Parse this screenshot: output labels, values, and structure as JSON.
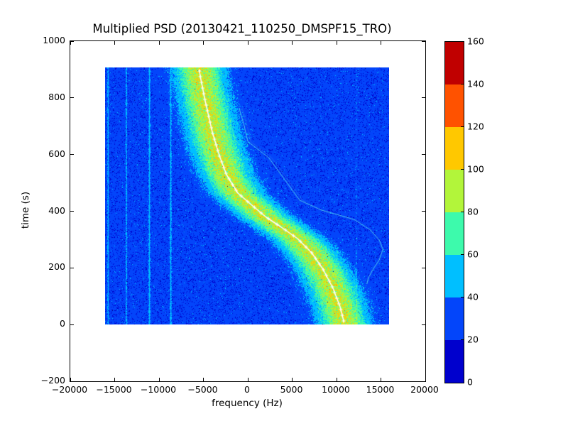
{
  "title": "Multiplied PSD (20130421_110250_DMSPF15_TRO)",
  "axes": {
    "xlabel": "frequency (Hz)",
    "ylabel": "time (s)",
    "xlim": [
      -20000,
      20000
    ],
    "ylim": [
      -200,
      1000
    ],
    "xticks": [
      {
        "value": -20000,
        "label": "−20000"
      },
      {
        "value": -15000,
        "label": "−15000"
      },
      {
        "value": -10000,
        "label": "−10000"
      },
      {
        "value": -5000,
        "label": "−5000"
      },
      {
        "value": 0,
        "label": "0"
      },
      {
        "value": 5000,
        "label": "5000"
      },
      {
        "value": 10000,
        "label": "10000"
      },
      {
        "value": 15000,
        "label": "15000"
      },
      {
        "value": 20000,
        "label": "20000"
      }
    ],
    "yticks": [
      {
        "value": 1000,
        "label": "1000"
      },
      {
        "value": 800,
        "label": "800"
      },
      {
        "value": 600,
        "label": "600"
      },
      {
        "value": 400,
        "label": "400"
      },
      {
        "value": 200,
        "label": "200"
      },
      {
        "value": 0,
        "label": "0"
      },
      {
        "value": -200,
        "label": "−200"
      }
    ]
  },
  "colorbar": {
    "levels": [
      0,
      20,
      40,
      60,
      80,
      100,
      120,
      140,
      160
    ],
    "tick_labels": [
      "0",
      "20",
      "40",
      "60",
      "80",
      "100",
      "120",
      "140",
      "160"
    ],
    "colors_low_to_high": [
      "#0000CD",
      "#0345FA",
      "#00BFFF",
      "#3DFAAC",
      "#B2F53A",
      "#FFC800",
      "#FF5200",
      "#C00000"
    ]
  },
  "chart_data": {
    "type": "heatmap",
    "title": "Multiplied PSD (20130421_110250_DMSPF15_TRO)",
    "xlabel": "frequency (Hz)",
    "ylabel": "time (s)",
    "xlim": [
      -20000,
      20000
    ],
    "ylim": [
      -200,
      1000
    ],
    "grid": false,
    "colormap": "jet, discrete 8 bins, range 0-160",
    "data_extent": {
      "frequency_hz": [
        -16000,
        16000
      ],
      "time_s": [
        0,
        905
      ]
    },
    "background_noise_psd": {
      "mean": 28,
      "range": [
        10,
        45
      ],
      "dominant_bin": "20-40"
    },
    "doppler_band": {
      "description": "S-shaped (tanh-like) high-power Doppler track, gaussian cross-section",
      "sigma_hz": 1900,
      "peak_psd": 100,
      "center_track_t_f": [
        [
          0,
          10960
        ],
        [
          60,
          10480
        ],
        [
          125,
          9680
        ],
        [
          192,
          8560
        ],
        [
          250,
          7280
        ],
        [
          300,
          5680
        ],
        [
          342,
          3760
        ],
        [
          375,
          2160
        ],
        [
          417,
          560
        ],
        [
          460,
          -1040
        ],
        [
          525,
          -2320
        ],
        [
          592,
          -3120
        ],
        [
          675,
          -3920
        ],
        [
          785,
          -4720
        ],
        [
          872,
          -5280
        ],
        [
          905,
          -5430
        ]
      ]
    },
    "white_fit_curve": {
      "style": "white line with + markers every 20 s",
      "t_f": "same as doppler_band.center_track_t_f"
    },
    "vertical_interference_lines_hz": [
      -15650,
      -13600,
      -11000,
      -8600
    ],
    "faint_vertical_line_hz": 12300,
    "secondary_thin_trace_t_f": [
      [
        140,
        13500
      ],
      [
        160,
        13650
      ],
      [
        190,
        14150
      ],
      [
        225,
        14900
      ],
      [
        262,
        15300
      ],
      [
        295,
        14900
      ],
      [
        330,
        13900
      ],
      [
        367,
        12080
      ],
      [
        400,
        8400
      ],
      [
        435,
        5920
      ],
      [
        505,
        4300
      ],
      [
        584,
        2456
      ],
      [
        642,
        80
      ],
      [
        700,
        -350
      ],
      [
        760,
        -900
      ]
    ]
  }
}
